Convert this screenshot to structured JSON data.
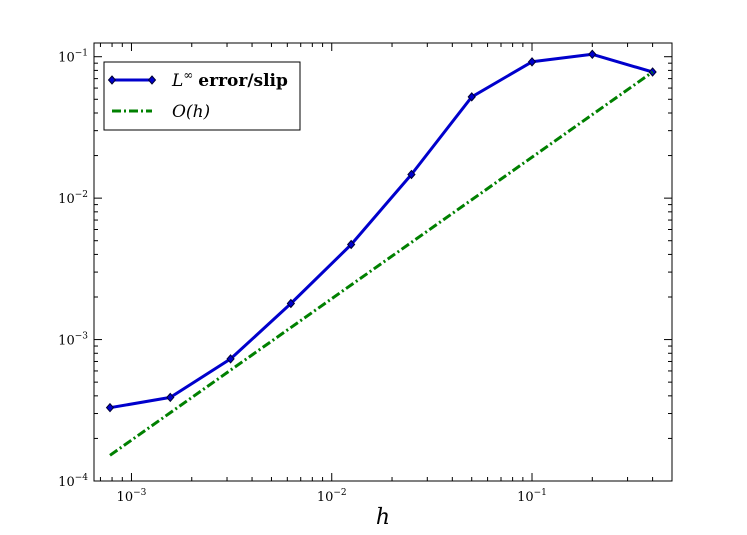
{
  "chart_data": {
    "type": "line",
    "xscale": "log",
    "yscale": "log",
    "xlabel": "h",
    "ylabel": "",
    "title": "",
    "xlim": [
      0.00065,
      0.5
    ],
    "ylim": [
      0.0001,
      0.125
    ],
    "x_ticks": [
      {
        "base": "10",
        "exp": "−3",
        "value": 0.001
      },
      {
        "base": "10",
        "exp": "−2",
        "value": 0.01
      },
      {
        "base": "10",
        "exp": "−1",
        "value": 0.1
      }
    ],
    "y_ticks": [
      {
        "base": "10",
        "exp": "−4",
        "value": 0.0001
      },
      {
        "base": "10",
        "exp": "−3",
        "value": 0.001
      },
      {
        "base": "10",
        "exp": "−2",
        "value": 0.01
      },
      {
        "base": "10",
        "exp": "−1",
        "value": 0.1
      }
    ],
    "legend_position": "top-left",
    "series": [
      {
        "name": "L∞ error/slip",
        "legend": {
          "base": "L",
          "sup": "∞",
          "rest": "error/slip"
        },
        "color": "#0000cc",
        "style": "solid",
        "marker": "diamond",
        "x": [
          0.00078125,
          0.0015625,
          0.003125,
          0.00625,
          0.0125,
          0.025,
          0.05,
          0.1,
          0.2,
          0.4
        ],
        "y": [
          0.00033,
          0.00039,
          0.00073,
          0.0018,
          0.0047,
          0.0147,
          0.052,
          0.092,
          0.104,
          0.078
        ]
      },
      {
        "name": "O(h)",
        "legend": {
          "base": "O(h)",
          "sup": "",
          "rest": ""
        },
        "color": "#008000",
        "style": "dashdot",
        "marker": "none",
        "x": [
          0.00078125,
          0.4
        ],
        "y": [
          0.000152,
          0.078
        ]
      }
    ]
  }
}
